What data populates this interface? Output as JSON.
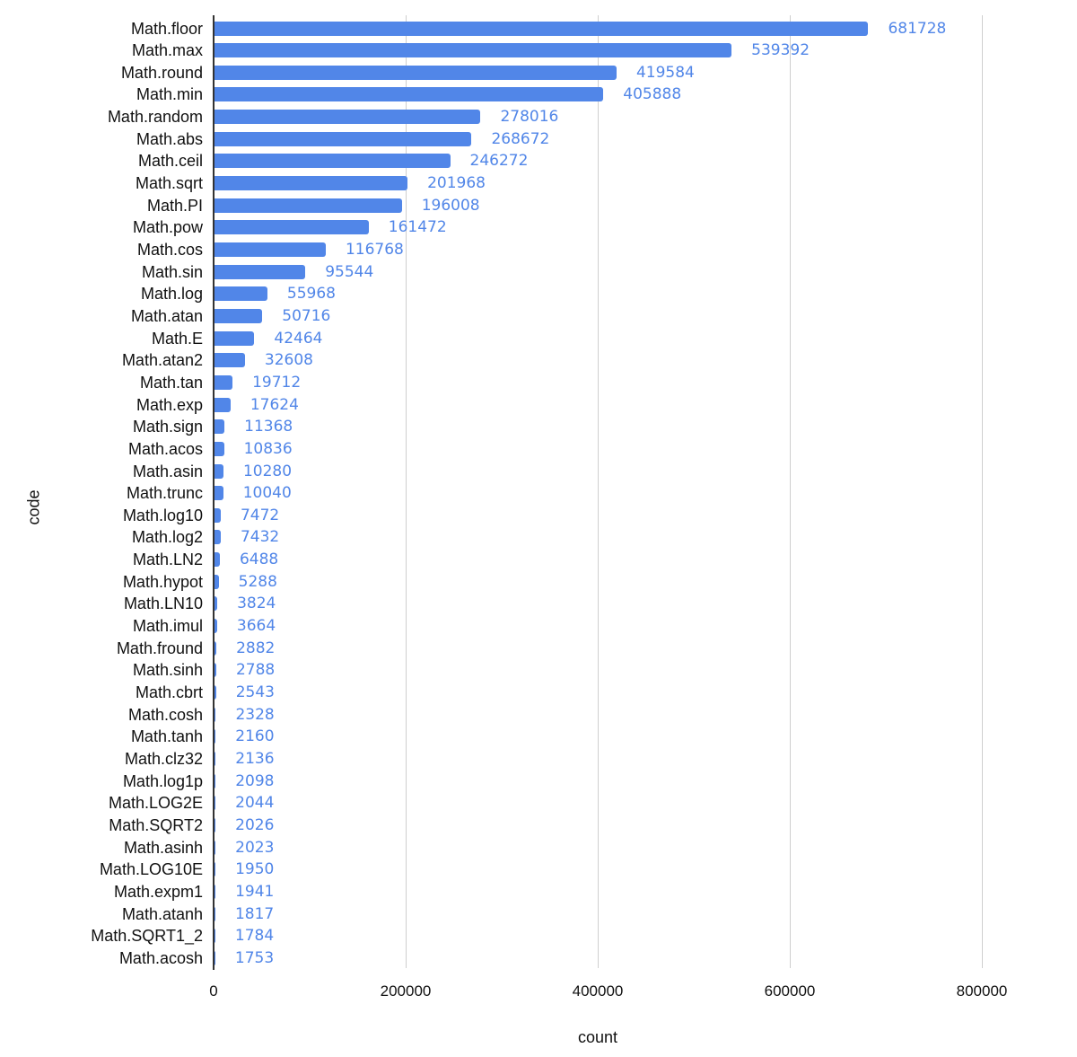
{
  "chart_data": {
    "type": "bar",
    "orientation": "horizontal",
    "title": "",
    "xlabel": "count",
    "ylabel": "code",
    "xlim": [
      0,
      800000
    ],
    "x_ticks": [
      "0",
      "200000",
      "400000",
      "600000",
      "800000"
    ],
    "grid": true,
    "legend": null,
    "bar_color": "#5186e8",
    "data_labels": true,
    "categories": [
      "Math.floor",
      "Math.max",
      "Math.round",
      "Math.min",
      "Math.random",
      "Math.abs",
      "Math.ceil",
      "Math.sqrt",
      "Math.PI",
      "Math.pow",
      "Math.cos",
      "Math.sin",
      "Math.log",
      "Math.atan",
      "Math.E",
      "Math.atan2",
      "Math.tan",
      "Math.exp",
      "Math.sign",
      "Math.acos",
      "Math.asin",
      "Math.trunc",
      "Math.log10",
      "Math.log2",
      "Math.LN2",
      "Math.hypot",
      "Math.LN10",
      "Math.imul",
      "Math.fround",
      "Math.sinh",
      "Math.cbrt",
      "Math.cosh",
      "Math.tanh",
      "Math.clz32",
      "Math.log1p",
      "Math.LOG2E",
      "Math.SQRT2",
      "Math.asinh",
      "Math.LOG10E",
      "Math.expm1",
      "Math.atanh",
      "Math.SQRT1_2",
      "Math.acosh"
    ],
    "values": [
      681728,
      539392,
      419584,
      405888,
      278016,
      268672,
      246272,
      201968,
      196008,
      161472,
      116768,
      95544,
      55968,
      50716,
      42464,
      32608,
      19712,
      17624,
      11368,
      10836,
      10280,
      10040,
      7472,
      7432,
      6488,
      5288,
      3824,
      3664,
      2882,
      2788,
      2543,
      2328,
      2160,
      2136,
      2098,
      2044,
      2026,
      2023,
      1950,
      1941,
      1817,
      1784,
      1753
    ]
  }
}
